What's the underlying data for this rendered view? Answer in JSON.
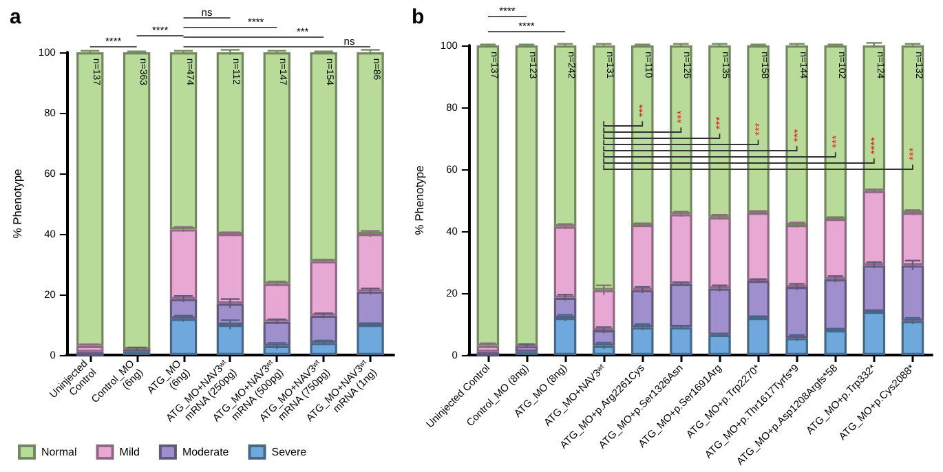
{
  "chart_data": [
    {
      "type": "bar",
      "title": "a",
      "ylabel": "% Phenotype",
      "stacked": true,
      "legend": "bottom left",
      "grid": false,
      "categories": [
        "Uninjected Control",
        "Control_MO (6ng)",
        "ATG_MO (6ng)",
        "ATG_MO+NAV3ʷᵗ mRNA (250pg)",
        "ATG_MO+NAV3ʷᵗ mRNA (500pg)",
        "ATG_MO+NAV3ʷᵗ mRNA (750pg)",
        "ATG_MO+NAV3ʷᵗ mRNA (1ng)"
      ],
      "ylim": [
        0,
        100
      ],
      "yticks": [
        0,
        20,
        40,
        60,
        80,
        100
      ],
      "series": [
        {
          "name": "Severe",
          "color": "#6fa8dc",
          "values": [
            0,
            1,
            12,
            10,
            3,
            4,
            10
          ],
          "errors": [
            null,
            null,
            1,
            1.5,
            1,
            0.8,
            0.5
          ]
        },
        {
          "name": "Moderate",
          "color": "#9f8fcc",
          "values": [
            1,
            1,
            6.5,
            7,
            8,
            9,
            11
          ],
          "errors": [
            null,
            0.5,
            1,
            1.5,
            0.8,
            0.8,
            1
          ]
        },
        {
          "name": "Mild",
          "color": "#e8a8d4",
          "values": [
            2,
            0,
            23,
            23,
            12.5,
            18,
            19
          ],
          "errors": [
            0.5,
            null,
            0.8,
            0.5,
            0.8,
            0.5,
            1
          ]
        },
        {
          "name": "Normal",
          "color": "#b8db9a",
          "values": [
            97,
            98,
            58.5,
            60,
            76.5,
            69,
            60
          ],
          "errors": [
            0.5,
            0.3,
            0.5,
            0.8,
            0.5,
            0.3,
            0.8
          ]
        }
      ],
      "annotations": [
        "****",
        "****",
        "ns",
        "****",
        "***",
        "ns",
        {
          "text": "n=137",
          "x": "Uninjected Control",
          "y": 98
        },
        {
          "text": "n=363",
          "x": "Control_MO (6ng)",
          "y": 98
        },
        {
          "text": "n=474",
          "x": "ATG_MO (6ng)",
          "y": 98
        },
        {
          "text": "n=112",
          "x": "ATG_MO+NAV3ʷᵗ mRNA (250pg)",
          "y": 98
        },
        {
          "text": "n=147",
          "x": "ATG_MO+NAV3ʷᵗ mRNA (500pg)",
          "y": 98
        },
        {
          "text": "n=154",
          "x": "ATG_MO+NAV3ʷᵗ mRNA (750pg)",
          "y": 98
        },
        {
          "text": "n=86",
          "x": "ATG_MO+NAV3ʷᵗ mRNA (1ng)",
          "y": 98
        }
      ]
    },
    {
      "type": "bar",
      "title": "b",
      "ylabel": "% Phenotype",
      "stacked": true,
      "grid": false,
      "categories": [
        "Uninjected Control",
        "Control_MO (8ng)",
        "ATG_MO (8ng)",
        "ATG_MO+NAV3ʷᵗ",
        "ATG_MO+p.Arg2261Cys",
        "ATG_MO+p.Ser1326Asn",
        "ATG_MO+p.Ser1691Arg",
        "ATG_MO+p.Trp2270*",
        "ATG_MO+p.Thr1617Tyrfs*9",
        "ATG_MO+p.Asp1208Argfs*58",
        "ATG_MO+p.Trp332*",
        "ATG_MO+p.Cys2088*"
      ],
      "ylim": [
        0,
        100
      ],
      "yticks": [
        0,
        20,
        40,
        60,
        80,
        100
      ],
      "series": [
        {
          "color": "#6fa8dc",
          "values": [
            0,
            1,
            12,
            3,
            9,
            9,
            6.5,
            12,
            5.5,
            8,
            14,
            11
          ],
          "errors": [
            null,
            null,
            1,
            1,
            1,
            0.5,
            0.3,
            0.5,
            1,
            0.5,
            0.5,
            1
          ]
        },
        {
          "color": "#9f8fcc",
          "values": [
            1,
            2,
            6.5,
            5,
            12,
            14,
            15,
            12,
            16.5,
            16.5,
            15,
            18
          ],
          "errors": [
            null,
            0.5,
            1,
            1,
            1,
            0.5,
            1,
            0.5,
            1,
            1,
            1,
            1.5
          ]
        },
        {
          "color": "#e8a8d4",
          "values": [
            2,
            0,
            23,
            13,
            21,
            22.5,
            23,
            22,
            20,
            19.5,
            24,
            17
          ],
          "errors": [
            0.8,
            null,
            0.8,
            1.5,
            0.5,
            0.8,
            0.8,
            0.5,
            0.8,
            0.5,
            0.5,
            0.8
          ]
        },
        {
          "color": "#b8db9a",
          "values": [
            97,
            97,
            58.5,
            79,
            58,
            54.5,
            55.5,
            54,
            58,
            56,
            47,
            54
          ],
          "errors": [
            0.3,
            0.3,
            0.5,
            0.5,
            0.3,
            0.5,
            0.5,
            0.3,
            0.5,
            0.3,
            0.8,
            0.5
          ]
        }
      ],
      "annotations": [
        "****",
        "****",
        "***",
        "***",
        "***",
        "***",
        "***",
        "***",
        "****",
        "***",
        {
          "text": "n=137",
          "x": "Uninjected Control",
          "y": 98
        },
        {
          "text": "n=123",
          "x": "Control_MO (8ng)",
          "y": 98
        },
        {
          "text": "n=242",
          "x": "ATG_MO (8ng)",
          "y": 98
        },
        {
          "text": "n=131",
          "x": "ATG_MO+NAV3ʷᵗ",
          "y": 98
        },
        {
          "text": "n=110",
          "x": "ATG_MO+p.Arg2261Cys",
          "y": 98
        },
        {
          "text": "n=126",
          "x": "ATG_MO+p.Ser1326Asn",
          "y": 98
        },
        {
          "text": "n=135",
          "x": "ATG_MO+p.Ser1691Arg",
          "y": 98
        },
        {
          "text": "n=158",
          "x": "ATG_MO+p.Trp2270*",
          "y": 98
        },
        {
          "text": "n=144",
          "x": "ATG_MO+p.Thr1617Tyrfs*9",
          "y": 98
        },
        {
          "text": "n=102",
          "x": "ATG_MO+p.Asp1208Argfs*58",
          "y": 98
        },
        {
          "text": "n=124",
          "x": "ATG_MO+p.Trp332*",
          "y": 98
        },
        {
          "text": "n=132",
          "x": "ATG_MO+p.Cys2088*",
          "y": 98
        }
      ]
    }
  ]
}
